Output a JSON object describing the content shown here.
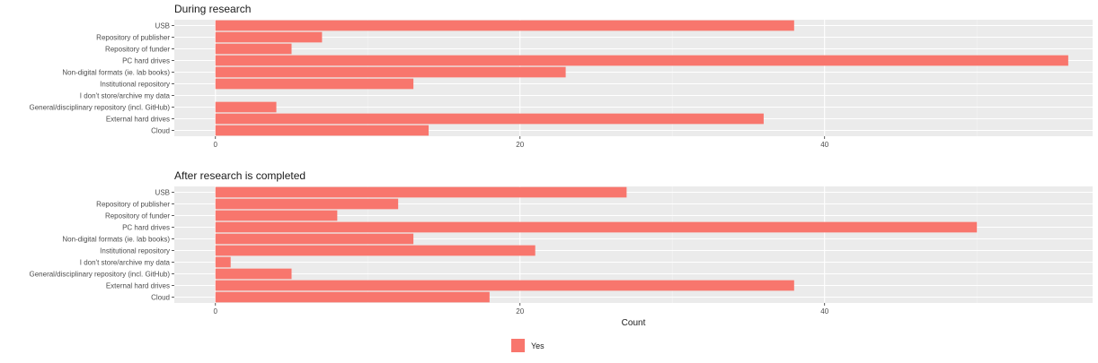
{
  "chart_data": {
    "type": "bar",
    "orientation": "horizontal",
    "categories": [
      "USB",
      "Repository of publisher",
      "Repository of funder",
      "PC hard drives",
      "Non-digital formats (ie. lab books)",
      "Institutional repository",
      "I don't store/archive my data",
      "General/disciplinary repository (incl. GitHub)",
      "External hard drives",
      "Cloud"
    ],
    "panels": [
      {
        "title": "During research",
        "series": [
          {
            "name": "Yes",
            "values": [
              38,
              7,
              5,
              56,
              23,
              13,
              0,
              4,
              36,
              14
            ]
          }
        ]
      },
      {
        "title": "After research is completed",
        "series": [
          {
            "name": "Yes",
            "values": [
              27,
              12,
              8,
              50,
              13,
              21,
              1,
              5,
              38,
              18
            ]
          }
        ]
      }
    ],
    "xlabel": "Count",
    "ylabel": "",
    "xlim": [
      -2.7,
      57.6
    ],
    "xticks": [
      0,
      20,
      40
    ],
    "grid": true,
    "legend": {
      "position": "bottom",
      "entries": [
        "Yes"
      ]
    },
    "colors": {
      "bar": "#F8766D",
      "panel_bg": "#EBEBEB",
      "grid_major": "#FFFFFF",
      "grid_minor": "#F4F4F4"
    }
  }
}
